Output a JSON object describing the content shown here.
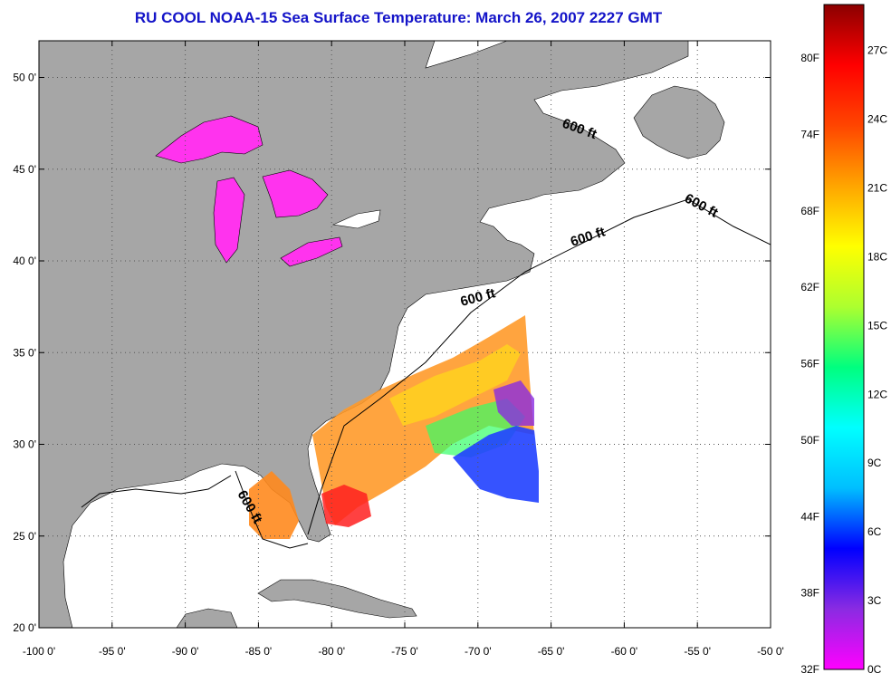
{
  "title": "RU COOL  NOAA-15  Sea Surface Temperature:  March 26, 2007 2227 GMT",
  "map": {
    "lat_ticks": [
      "50 0'",
      "45 0'",
      "40 0'",
      "35 0'",
      "30 0'",
      "25 0'",
      "20 0'"
    ],
    "lon_ticks": [
      "-100 0'",
      "-95 0'",
      "-90 0'",
      "-85 0'",
      "-80 0'",
      "-75 0'",
      "-70 0'",
      "-65 0'",
      "-60 0'",
      "-55 0'",
      "-50 0'"
    ],
    "lat_range": [
      20,
      52
    ],
    "lon_range": [
      -100,
      -50
    ],
    "grid": "dotted",
    "isobath_label": "600 ft"
  },
  "colorbar": {
    "fahrenheit_labels": [
      "80F",
      "74F",
      "68F",
      "62F",
      "56F",
      "50F",
      "44F",
      "38F",
      "32F"
    ],
    "celsius_labels": [
      "27C",
      "24C",
      "21C",
      "18C",
      "15C",
      "12C",
      "9C",
      "6C",
      "3C",
      "0C"
    ],
    "range_c": [
      0,
      29
    ],
    "colors": [
      "#ff00ff",
      "#8a2be2",
      "#0000ff",
      "#00bfff",
      "#00ffff",
      "#00ff7f",
      "#adff2f",
      "#ffff00",
      "#ffa500",
      "#ff4500",
      "#ff0000",
      "#8b0000"
    ]
  },
  "colors": {
    "land": "#a6a6a6",
    "title": "#1414c8"
  }
}
